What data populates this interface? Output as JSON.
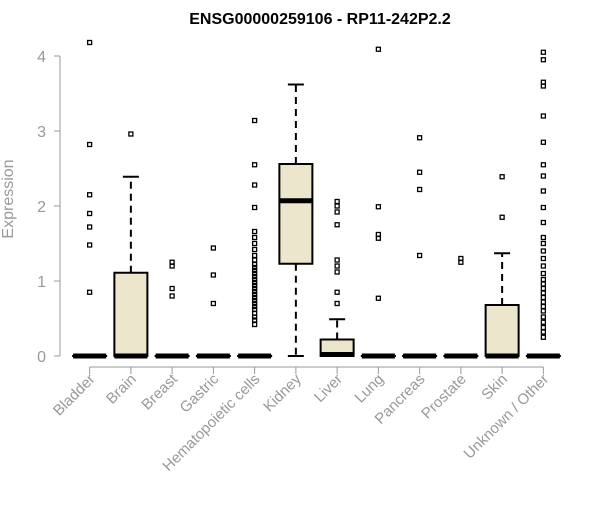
{
  "chart_data": {
    "type": "box",
    "title": "ENSG00000259106 - RP11-242P2.2",
    "xlabel": "",
    "ylabel": "Expression",
    "ylim": [
      0,
      4.2
    ],
    "yticks": [
      0,
      1,
      2,
      3,
      4
    ],
    "grid": false,
    "box_fill": "#ECE6CC",
    "categories": [
      "Bladder",
      "Brain",
      "Breast",
      "Gastric",
      "Hematopoietic cells",
      "Kidney",
      "Liver",
      "Lung",
      "Pancreas",
      "Prostate",
      "Skin",
      "Unknown / Other"
    ],
    "boxes": [
      {
        "q1": 0,
        "median": 0,
        "q3": 0,
        "whisker_low": 0,
        "whisker_high": 0,
        "outliers": [
          0.85,
          1.48,
          1.72,
          1.9,
          2.15,
          2.82,
          4.18
        ]
      },
      {
        "q1": 0,
        "median": 0,
        "q3": 1.11,
        "whisker_low": 0,
        "whisker_high": 2.39,
        "outliers": [
          2.96
        ]
      },
      {
        "q1": 0,
        "median": 0,
        "q3": 0,
        "whisker_low": 0,
        "whisker_high": 0,
        "outliers": [
          0.8,
          0.9,
          1.2,
          1.25
        ]
      },
      {
        "q1": 0,
        "median": 0,
        "q3": 0,
        "whisker_low": 0,
        "whisker_high": 0,
        "outliers": [
          0.7,
          1.08,
          1.44
        ]
      },
      {
        "q1": 0,
        "median": 0,
        "q3": 0,
        "whisker_low": 0,
        "whisker_high": 0,
        "outliers": [
          0.42,
          0.48,
          0.52,
          0.57,
          0.62,
          0.66,
          0.7,
          0.74,
          0.78,
          0.82,
          0.86,
          0.9,
          0.94,
          0.98,
          1.02,
          1.06,
          1.1,
          1.14,
          1.18,
          1.22,
          1.28,
          1.34,
          1.42,
          1.5,
          1.58,
          1.66,
          1.98,
          2.28,
          2.55,
          3.14
        ]
      },
      {
        "q1": 1.23,
        "median": 2.07,
        "q3": 2.56,
        "whisker_low": 0,
        "whisker_high": 3.62,
        "outliers": []
      },
      {
        "q1": 0,
        "median": 0.02,
        "q3": 0.22,
        "whisker_low": 0,
        "whisker_high": 0.49,
        "outliers": [
          0.7,
          0.85,
          1.12,
          1.2,
          1.28,
          1.75,
          1.92,
          2.0,
          2.06
        ]
      },
      {
        "q1": 0,
        "median": 0,
        "q3": 0,
        "whisker_low": 0,
        "whisker_high": 0,
        "outliers": [
          0.77,
          1.57,
          1.62,
          1.99,
          4.09
        ]
      },
      {
        "q1": 0,
        "median": 0,
        "q3": 0,
        "whisker_low": 0,
        "whisker_high": 0,
        "outliers": [
          1.34,
          2.22,
          2.45,
          2.91
        ]
      },
      {
        "q1": 0,
        "median": 0,
        "q3": 0,
        "whisker_low": 0,
        "whisker_high": 0,
        "outliers": [
          1.25,
          1.3
        ]
      },
      {
        "q1": 0,
        "median": 0,
        "q3": 0.68,
        "whisker_low": 0,
        "whisker_high": 1.37,
        "outliers": [
          1.85,
          2.39
        ]
      },
      {
        "q1": 0,
        "median": 0,
        "q3": 0,
        "whisker_low": 0,
        "whisker_high": 0,
        "outliers": [
          0.25,
          0.32,
          0.38,
          0.45,
          0.52,
          0.6,
          0.66,
          0.72,
          0.78,
          0.84,
          0.9,
          0.96,
          1.02,
          1.1,
          1.2,
          1.3,
          1.4,
          1.5,
          1.58,
          1.78,
          1.98,
          2.2,
          2.4,
          2.55,
          2.85,
          3.2,
          3.6,
          3.65,
          3.95,
          4.05
        ]
      }
    ]
  }
}
